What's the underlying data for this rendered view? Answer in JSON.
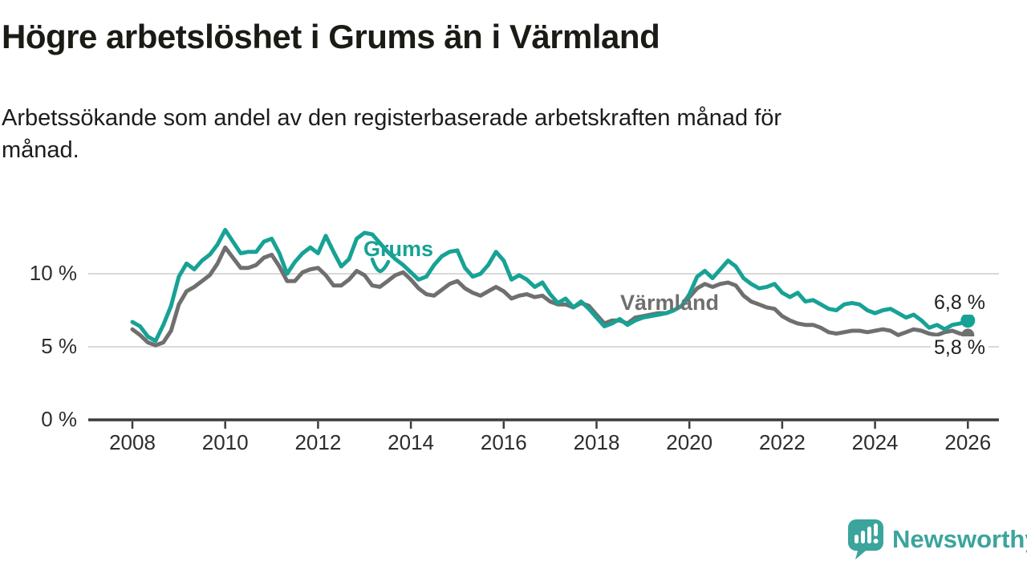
{
  "title": "Högre arbetslöshet i Grums än i Värmland",
  "subtitle_lines": [
    "Arbetssökande som andel av den registerbaserade arbetskraften månad för",
    "månad."
  ],
  "colors": {
    "grums_teal": "#17A295",
    "varmland_gray": "#6F6F6F",
    "logo_teal": "#3BA49D"
  },
  "chart_data": {
    "type": "line",
    "title": "Högre arbetslöshet i Grums än i Värmland",
    "xlabel": "",
    "ylabel": "Arbetssökande som andel av den registerbaserade arbetskraften",
    "unit": "%",
    "x_start_year": 2008,
    "x_step_years": 0.16667,
    "xlim": [
      2007.5,
      2026.7
    ],
    "ylim": [
      0,
      13.5
    ],
    "grid": "horizontal",
    "x_ticks": [
      2008,
      2010,
      2012,
      2014,
      2016,
      2018,
      2020,
      2022,
      2024,
      2026
    ],
    "y_ticks": [
      {
        "value": 0,
        "label": "0 %"
      },
      {
        "value": 5,
        "label": "5 %"
      },
      {
        "value": 10,
        "label": "10 %"
      }
    ],
    "series": [
      {
        "name": "Grums",
        "color": "#17A295",
        "end_dot_radius": 9,
        "values": [
          6.7,
          6.4,
          5.7,
          5.4,
          6.5,
          7.8,
          9.8,
          10.7,
          10.3,
          10.9,
          11.3,
          12.0,
          13.0,
          12.2,
          11.4,
          11.5,
          11.5,
          12.2,
          12.4,
          11.4,
          10.0,
          10.8,
          11.4,
          11.8,
          11.4,
          12.6,
          11.5,
          10.5,
          11.0,
          12.4,
          12.8,
          12.7,
          12.1,
          11.5,
          11.0,
          10.6,
          10.1,
          9.6,
          9.8,
          10.6,
          11.2,
          11.5,
          11.6,
          10.4,
          9.8,
          10.0,
          10.6,
          11.5,
          10.9,
          9.6,
          9.9,
          9.6,
          9.1,
          9.4,
          8.6,
          8.0,
          8.3,
          7.7,
          8.1,
          7.6,
          7.0,
          6.4,
          6.6,
          6.9,
          6.5,
          6.8,
          7.0,
          7.1,
          7.2,
          7.3,
          7.5,
          7.8,
          8.6,
          9.8,
          10.2,
          9.7,
          10.3,
          10.9,
          10.5,
          9.7,
          9.3,
          9.0,
          9.1,
          9.3,
          8.7,
          8.4,
          8.7,
          8.1,
          8.2,
          7.9,
          7.6,
          7.5,
          7.9,
          8.0,
          7.9,
          7.5,
          7.3,
          7.5,
          7.6,
          7.3,
          7.0,
          7.2,
          6.8,
          6.3,
          6.5,
          6.2,
          6.5,
          6.6,
          6.8
        ]
      },
      {
        "name": "Värmland",
        "color": "#6F6F6F",
        "end_dot_radius": 8,
        "values": [
          6.2,
          5.8,
          5.3,
          5.1,
          5.3,
          6.1,
          7.9,
          8.8,
          9.1,
          9.5,
          9.9,
          10.7,
          11.8,
          11.1,
          10.4,
          10.4,
          10.6,
          11.1,
          11.3,
          10.5,
          9.5,
          9.5,
          10.1,
          10.3,
          10.4,
          9.9,
          9.2,
          9.2,
          9.6,
          10.2,
          9.9,
          9.2,
          9.1,
          9.5,
          9.9,
          10.1,
          9.6,
          9.0,
          8.6,
          8.5,
          8.9,
          9.3,
          9.5,
          9.0,
          8.7,
          8.5,
          8.8,
          9.1,
          8.8,
          8.3,
          8.5,
          8.6,
          8.4,
          8.5,
          8.1,
          7.9,
          7.9,
          7.7,
          8.0,
          7.8,
          7.2,
          6.6,
          6.8,
          6.8,
          6.6,
          7.0,
          7.1,
          7.2,
          7.3,
          7.3,
          7.5,
          7.8,
          8.4,
          9.0,
          9.3,
          9.1,
          9.3,
          9.4,
          9.2,
          8.5,
          8.1,
          7.9,
          7.7,
          7.6,
          7.1,
          6.8,
          6.6,
          6.5,
          6.5,
          6.3,
          6.0,
          5.9,
          6.0,
          6.1,
          6.1,
          6.0,
          6.1,
          6.2,
          6.1,
          5.8,
          6.0,
          6.2,
          6.1,
          5.9,
          5.8,
          6.0,
          6.1,
          5.9,
          5.8
        ]
      }
    ],
    "end_labels": {
      "grums": "6,8 %",
      "varmland": "5,8 %"
    },
    "annotations": [
      {
        "text": "Grums",
        "series": "Grums"
      },
      {
        "text": "Värmland",
        "series": "Värmland"
      }
    ],
    "legend_position": "inline-labels"
  },
  "logo": {
    "text": "Newsworthy",
    "icon": "newsworthy-speech-bubble-chart-icon"
  }
}
